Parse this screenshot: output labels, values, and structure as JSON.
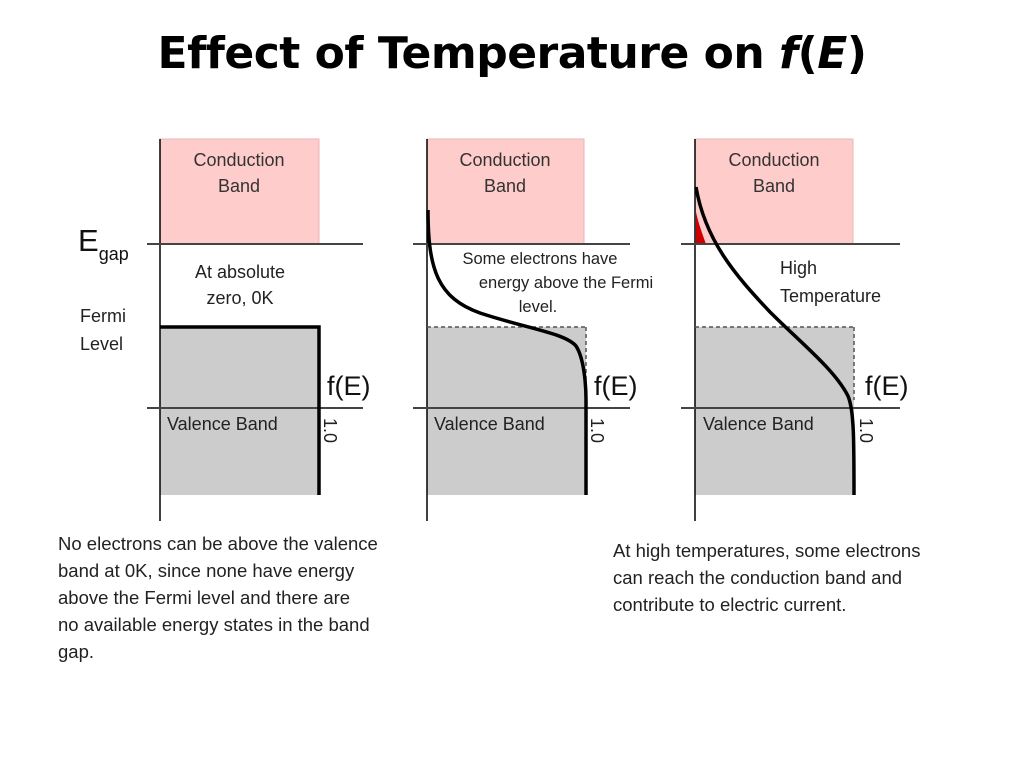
{
  "title": {
    "prefix": "Effect of Temperature on ",
    "func": "f",
    "open_paren": "(",
    "var": "E",
    "close_paren": ")"
  },
  "colors": {
    "conduction_band": "#ffcccc",
    "valence_band": "#cccccc",
    "occupied_conduction_tail": "#cc0000",
    "line": "#000000",
    "text": "#222222"
  },
  "left_labels": {
    "egap_main": "E",
    "egap_sub": "gap",
    "fermi_line1": "Fermi",
    "fermi_line2": "Level"
  },
  "panels": [
    {
      "conduction_line1": "Conduction",
      "conduction_line2": "Band",
      "valence_label": "Valence Band",
      "fe_label": "f(E)",
      "one_label": "1.0",
      "note_lines": [
        "At absolute",
        "zero, 0K"
      ]
    },
    {
      "conduction_line1": "Conduction",
      "conduction_line2": "Band",
      "valence_label": "Valence Band",
      "fe_label": "f(E)",
      "one_label": "1.0",
      "note_lines": [
        "Some electrons have",
        "energy above the Fermi",
        "level."
      ]
    },
    {
      "conduction_line1": "Conduction",
      "conduction_line2": "Band",
      "valence_label": "Valence Band",
      "fe_label": "f(E)",
      "one_label": "1.0",
      "note_lines": [
        "High",
        "Temperature"
      ]
    }
  ],
  "captions": {
    "left": [
      "No electrons can be above the valence",
      "band at 0K, since none have energy",
      "above the Fermi level and there are",
      "no available energy states in the band",
      "gap."
    ],
    "right": [
      "At high temperatures, some electrons",
      "can reach the conduction band and",
      "contribute to electric current."
    ]
  }
}
